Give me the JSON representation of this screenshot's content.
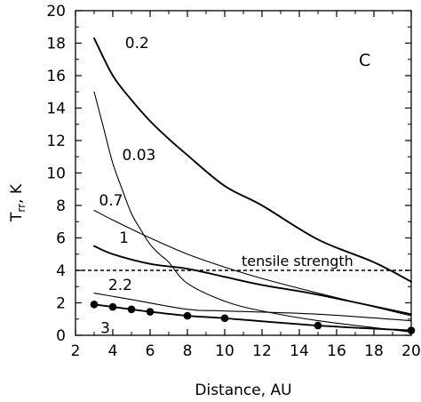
{
  "chart_data": {
    "type": "line",
    "panel_label": "C",
    "xlabel": "Distance, AU",
    "ylabel": "T",
    "ylabel_sub": "rr",
    "ylabel_unit": ", K",
    "xlim": [
      2,
      20
    ],
    "ylim": [
      0,
      20
    ],
    "xticks": [
      2,
      4,
      6,
      8,
      10,
      12,
      14,
      16,
      18,
      20
    ],
    "yticks": [
      0,
      2,
      4,
      6,
      8,
      10,
      12,
      14,
      16,
      18,
      20
    ],
    "grid": false,
    "series": [
      {
        "name": "0.2",
        "stroke": "thick",
        "x": [
          3,
          4,
          5,
          6,
          7,
          8,
          10,
          12,
          15,
          18,
          20
        ],
        "y": [
          18.3,
          16.0,
          14.5,
          13.2,
          12.1,
          11.1,
          9.2,
          8.0,
          5.9,
          4.5,
          3.3
        ]
      },
      {
        "name": "0.03",
        "stroke": "thin",
        "x": [
          3,
          3.5,
          4,
          4.5,
          5,
          5.5,
          6,
          6.5,
          7,
          8,
          10,
          12,
          15,
          20
        ],
        "y": [
          15.0,
          12.8,
          10.6,
          9.0,
          7.5,
          6.5,
          5.6,
          5.0,
          4.5,
          3.2,
          2.1,
          1.5,
          0.9,
          0.2
        ]
      },
      {
        "name": "0.7",
        "stroke": "thin",
        "x": [
          3,
          4,
          6,
          8,
          10,
          12,
          15,
          20
        ],
        "y": [
          7.7,
          7.1,
          6.0,
          5.0,
          4.2,
          3.5,
          2.6,
          1.2
        ]
      },
      {
        "name": "1",
        "stroke": "thick",
        "x": [
          3,
          4,
          6,
          8,
          10,
          12,
          15,
          20
        ],
        "y": [
          5.5,
          5.0,
          4.4,
          4.1,
          3.6,
          3.1,
          2.5,
          1.3
        ]
      },
      {
        "name": "2.2",
        "stroke": "thin",
        "x": [
          3,
          5,
          8,
          10,
          15,
          20
        ],
        "y": [
          2.6,
          2.2,
          1.6,
          1.5,
          1.3,
          0.9
        ]
      },
      {
        "name": "3",
        "stroke": "thick",
        "markers": true,
        "x": [
          3,
          4,
          5,
          6,
          8,
          10,
          15,
          20
        ],
        "y": [
          1.9,
          1.75,
          1.6,
          1.45,
          1.2,
          1.05,
          0.6,
          0.3
        ]
      }
    ],
    "reference_lines": [
      {
        "label": "tensile strength",
        "y": 4,
        "style": "dashed"
      }
    ]
  }
}
